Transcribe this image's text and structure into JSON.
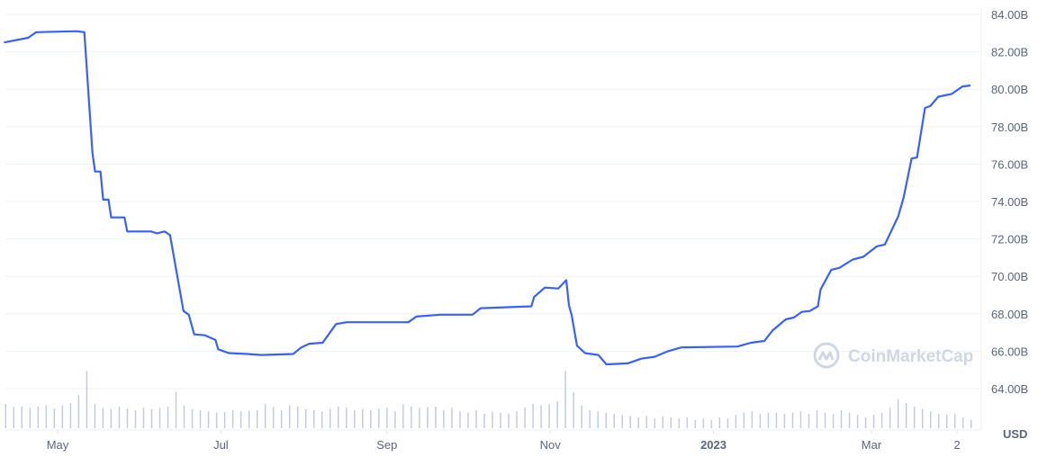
{
  "chart_data": {
    "type": "line",
    "currency_label": "USD",
    "watermark": "CoinMarketCap",
    "colors": {
      "line": "#3861fb",
      "volume": "#c3cbe0",
      "grid": "#eff2f5",
      "text": "#58667e"
    },
    "ylim": [
      63,
      84
    ],
    "y_ticks": [
      "84.00B",
      "82.00B",
      "80.00B",
      "78.00B",
      "76.00B",
      "74.00B",
      "72.00B",
      "70.00B",
      "68.00B",
      "66.00B",
      "64.00B"
    ],
    "y_tick_values": [
      84,
      82,
      80,
      78,
      76,
      74,
      72,
      70,
      68,
      66,
      64
    ],
    "x_range": [
      "2022-04-11",
      "2023-04-10"
    ],
    "x_ticks": [
      {
        "label": "May",
        "date": "2022-05-01",
        "bold": false
      },
      {
        "label": "Jul",
        "date": "2022-07-01",
        "bold": false
      },
      {
        "label": "Sep",
        "date": "2022-09-01",
        "bold": false
      },
      {
        "label": "Nov",
        "date": "2022-11-01",
        "bold": false
      },
      {
        "label": "2023",
        "date": "2023-01-01",
        "bold": true
      },
      {
        "label": "Mar",
        "date": "2023-03-01",
        "bold": false
      },
      {
        "label": "2",
        "date": "2023-04-02",
        "bold": false
      }
    ],
    "series": [
      {
        "unit": "B USD",
        "points": [
          [
            "2022-04-11",
            82.5
          ],
          [
            "2022-04-20",
            82.75
          ],
          [
            "2022-04-23",
            83.05
          ],
          [
            "2022-05-08",
            83.1
          ],
          [
            "2022-05-11",
            83.05
          ],
          [
            "2022-05-14",
            76.6
          ],
          [
            "2022-05-15",
            75.6
          ],
          [
            "2022-05-17",
            75.6
          ],
          [
            "2022-05-18",
            74.1
          ],
          [
            "2022-05-20",
            74.1
          ],
          [
            "2022-05-21",
            73.15
          ],
          [
            "2022-05-26",
            73.15
          ],
          [
            "2022-05-27",
            72.4
          ],
          [
            "2022-06-05",
            72.4
          ],
          [
            "2022-06-07",
            72.3
          ],
          [
            "2022-06-10",
            72.4
          ],
          [
            "2022-06-12",
            72.2
          ],
          [
            "2022-06-17",
            68.15
          ],
          [
            "2022-06-19",
            67.95
          ],
          [
            "2022-06-21",
            66.9
          ],
          [
            "2022-06-25",
            66.85
          ],
          [
            "2022-06-29",
            66.6
          ],
          [
            "2022-06-30",
            66.1
          ],
          [
            "2022-07-04",
            65.9
          ],
          [
            "2022-07-11",
            65.85
          ],
          [
            "2022-07-16",
            65.8
          ],
          [
            "2022-07-28",
            65.85
          ],
          [
            "2022-07-31",
            66.2
          ],
          [
            "2022-08-03",
            66.4
          ],
          [
            "2022-08-08",
            66.45
          ],
          [
            "2022-08-13",
            67.45
          ],
          [
            "2022-08-17",
            67.55
          ],
          [
            "2022-09-09",
            67.55
          ],
          [
            "2022-09-12",
            67.85
          ],
          [
            "2022-09-21",
            67.95
          ],
          [
            "2022-10-03",
            67.95
          ],
          [
            "2022-10-06",
            68.3
          ],
          [
            "2022-10-25",
            68.4
          ],
          [
            "2022-10-26",
            68.9
          ],
          [
            "2022-10-30",
            69.4
          ],
          [
            "2022-11-04",
            69.35
          ],
          [
            "2022-11-07",
            69.8
          ],
          [
            "2022-11-08",
            68.45
          ],
          [
            "2022-11-09",
            67.95
          ],
          [
            "2022-11-11",
            66.3
          ],
          [
            "2022-11-14",
            65.9
          ],
          [
            "2022-11-19",
            65.8
          ],
          [
            "2022-11-22",
            65.3
          ],
          [
            "2022-11-30",
            65.35
          ],
          [
            "2022-12-05",
            65.6
          ],
          [
            "2022-12-10",
            65.7
          ],
          [
            "2022-12-15",
            66.0
          ],
          [
            "2022-12-20",
            66.2
          ],
          [
            "2023-01-10",
            66.25
          ],
          [
            "2023-01-15",
            66.45
          ],
          [
            "2023-01-20",
            66.55
          ],
          [
            "2023-01-23",
            67.1
          ],
          [
            "2023-01-28",
            67.7
          ],
          [
            "2023-01-31",
            67.8
          ],
          [
            "2023-02-03",
            68.1
          ],
          [
            "2023-02-06",
            68.15
          ],
          [
            "2023-02-09",
            68.4
          ],
          [
            "2023-02-10",
            69.3
          ],
          [
            "2023-02-14",
            70.35
          ],
          [
            "2023-02-17",
            70.45
          ],
          [
            "2023-02-22",
            70.9
          ],
          [
            "2023-02-26",
            71.05
          ],
          [
            "2023-03-03",
            71.6
          ],
          [
            "2023-03-06",
            71.7
          ],
          [
            "2023-03-11",
            73.2
          ],
          [
            "2023-03-13",
            74.2
          ],
          [
            "2023-03-16",
            76.3
          ],
          [
            "2023-03-18",
            76.35
          ],
          [
            "2023-03-21",
            79.0
          ],
          [
            "2023-03-23",
            79.1
          ],
          [
            "2023-03-26",
            79.6
          ],
          [
            "2023-03-31",
            79.75
          ],
          [
            "2023-04-04",
            80.15
          ],
          [
            "2023-04-07",
            80.2
          ]
        ]
      }
    ],
    "volume_relative": [
      40,
      35,
      36,
      34,
      36,
      38,
      33,
      38,
      42,
      55,
      95,
      40,
      34,
      32,
      36,
      33,
      30,
      34,
      32,
      34,
      36,
      60,
      38,
      32,
      30,
      28,
      26,
      27,
      30,
      28,
      29,
      30,
      40,
      35,
      30,
      38,
      36,
      32,
      30,
      28,
      32,
      36,
      34,
      30,
      32,
      30,
      32,
      34,
      28,
      40,
      36,
      34,
      35,
      36,
      30,
      34,
      28,
      26,
      30,
      24,
      28,
      26,
      24,
      28,
      34,
      40,
      38,
      40,
      45,
      95,
      60,
      38,
      30,
      28,
      26,
      24,
      22,
      20,
      18,
      20,
      16,
      20,
      18,
      16,
      18,
      14,
      16,
      14,
      18,
      16,
      22,
      26,
      28,
      24,
      26,
      26,
      24,
      26,
      28,
      24,
      30,
      26,
      24,
      30,
      26,
      22,
      18,
      22,
      26,
      34,
      48,
      42,
      36,
      32,
      28,
      24,
      22,
      24,
      18,
      14
    ]
  }
}
